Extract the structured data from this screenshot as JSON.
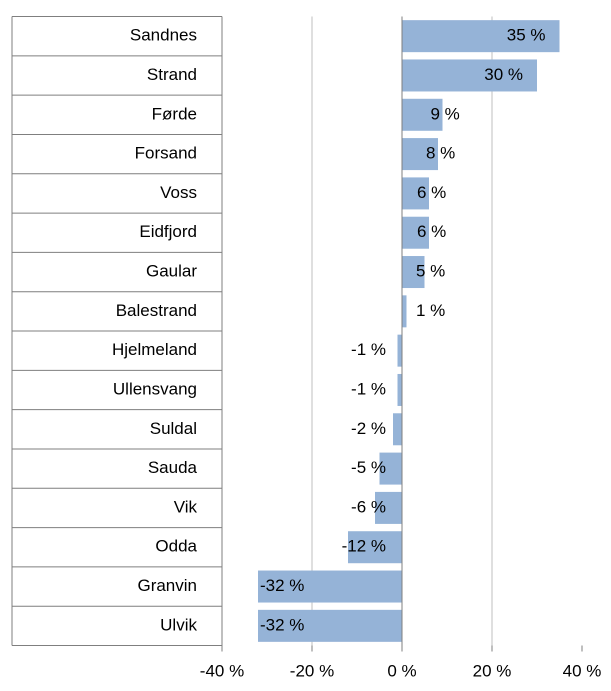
{
  "chart_data": {
    "type": "hbar",
    "categories": [
      "Sandnes",
      "Strand",
      "Førde",
      "Forsand",
      "Voss",
      "Eidfjord",
      "Gaular",
      "Balestrand",
      "Hjelmeland",
      "Ullensvang",
      "Suldal",
      "Sauda",
      "Vik",
      "Odda",
      "Granvin",
      "Ulvik"
    ],
    "values": [
      35,
      30,
      9,
      8,
      6,
      6,
      5,
      1,
      -1,
      -1,
      -2,
      -5,
      -6,
      -12,
      -32,
      -32
    ],
    "value_labels": [
      "35 %",
      "30 %",
      "9 %",
      "8 %",
      "6 %",
      "6 %",
      "5 %",
      "1 %",
      "-1 %",
      "-1 %",
      "-2 %",
      "-5 %",
      "-6 %",
      "-12 %",
      "-32 %",
      "-32 %"
    ],
    "color": "#95b3d7",
    "xlim": [
      -40,
      40
    ],
    "xticks": [
      {
        "value": -40,
        "label": "-40 %"
      },
      {
        "value": -20,
        "label": "-20 %"
      },
      {
        "value": 0,
        "label": "0 %"
      },
      {
        "value": 20,
        "label": "20 %"
      },
      {
        "value": 40,
        "label": "40 %"
      }
    ],
    "grid": true
  }
}
